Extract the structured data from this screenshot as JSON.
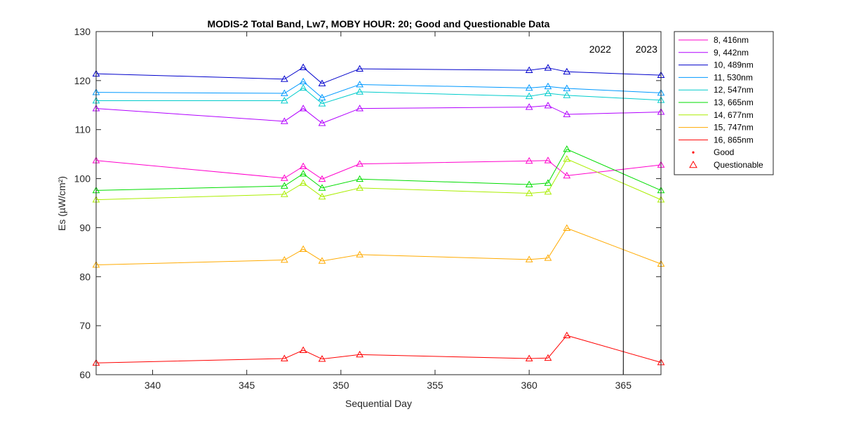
{
  "chart_data": {
    "type": "line",
    "title": "MODIS-2 Total Band,  Lw7, MOBY HOUR: 20;  Good and Questionable Data",
    "xlabel": "Sequential Day",
    "ylabel": "Es (µW/cm²)",
    "xlim": [
      337,
      367
    ],
    "ylim": [
      60,
      130
    ],
    "xticks": [
      340,
      345,
      350,
      355,
      360,
      365
    ],
    "yticks": [
      60,
      70,
      80,
      90,
      100,
      110,
      120,
      130
    ],
    "grid": false,
    "legend_position": "outside-top-right",
    "x": [
      337,
      347,
      348,
      349,
      351,
      360,
      361,
      362,
      367
    ],
    "series": [
      {
        "name": "8, 416nm",
        "color": "#ff00cc",
        "values": [
          103.7,
          100.1,
          102.5,
          99.9,
          103.0,
          103.6,
          103.7,
          100.6,
          102.8
        ]
      },
      {
        "name": "9, 442nm",
        "color": "#b200ff",
        "values": [
          114.3,
          111.7,
          114.3,
          111.3,
          114.3,
          114.6,
          114.9,
          113.1,
          113.6
        ]
      },
      {
        "name": "10, 489nm",
        "color": "#0000cc",
        "values": [
          121.4,
          120.3,
          122.7,
          119.4,
          122.4,
          122.1,
          122.6,
          121.8,
          121.1
        ]
      },
      {
        "name": "11, 530nm",
        "color": "#0099ff",
        "values": [
          117.6,
          117.4,
          119.8,
          116.5,
          119.2,
          118.5,
          118.8,
          118.4,
          117.5
        ]
      },
      {
        "name": "12, 547nm",
        "color": "#00cccc",
        "values": [
          115.9,
          115.9,
          118.5,
          115.3,
          117.7,
          116.8,
          117.4,
          117.0,
          116.0
        ]
      },
      {
        "name": "13, 665nm",
        "color": "#00dd00",
        "values": [
          97.6,
          98.5,
          101.0,
          98.1,
          99.9,
          98.8,
          99.1,
          106.0,
          97.6
        ]
      },
      {
        "name": "14, 677nm",
        "color": "#aaee00",
        "values": [
          95.7,
          96.8,
          99.1,
          96.3,
          98.1,
          97.0,
          97.3,
          104.0,
          95.7
        ]
      },
      {
        "name": "15, 747nm",
        "color": "#ffaa00",
        "values": [
          82.4,
          83.4,
          85.6,
          83.2,
          84.5,
          83.5,
          83.8,
          89.9,
          82.6
        ]
      },
      {
        "name": "16, 865nm",
        "color": "#ff0000",
        "values": [
          62.4,
          63.3,
          65.0,
          63.2,
          64.1,
          63.3,
          63.4,
          68.0,
          62.5
        ]
      }
    ],
    "marker_legend": [
      {
        "name": "Good",
        "marker": "dot",
        "color": "#ff0000"
      },
      {
        "name": "Questionable",
        "marker": "triangle",
        "color": "#ff0000"
      }
    ],
    "year_boundary_x": 365,
    "year_labels": {
      "left": "2022",
      "right": "2023"
    }
  }
}
